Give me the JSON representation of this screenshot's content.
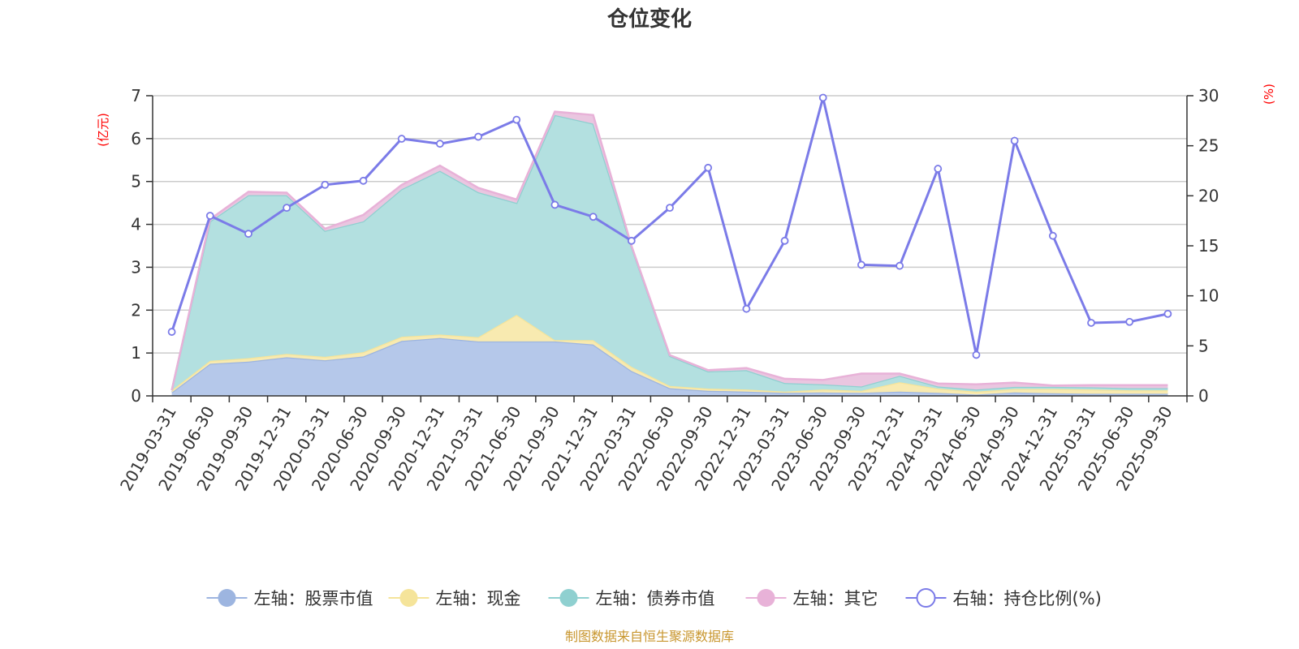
{
  "chart_data": {
    "type": "area",
    "title": "仓位变化",
    "left_axis_unit": "(亿元)",
    "right_axis_unit": "(%)",
    "left_ylim": [
      0,
      7
    ],
    "left_ticks": [
      "0",
      "1",
      "2",
      "3",
      "4",
      "5",
      "6",
      "7"
    ],
    "right_ylim": [
      0,
      30
    ],
    "right_ticks": [
      "0",
      "5",
      "10",
      "15",
      "20",
      "25",
      "30"
    ],
    "categories": [
      "2019-03-31",
      "2019-06-30",
      "2019-09-30",
      "2019-12-31",
      "2020-03-31",
      "2020-06-30",
      "2020-09-30",
      "2020-12-31",
      "2021-03-31",
      "2021-06-30",
      "2021-09-30",
      "2021-12-31",
      "2022-03-31",
      "2022-06-30",
      "2022-09-30",
      "2022-12-31",
      "2023-03-31",
      "2023-06-30",
      "2023-09-30",
      "2023-12-31",
      "2024-03-31",
      "2024-06-30",
      "2024-09-30",
      "2024-12-31",
      "2025-03-31",
      "2025-06-30",
      "2025-09-30"
    ],
    "series": [
      {
        "name": "左轴：股票市值",
        "axis": "left",
        "color": "#9db5e0",
        "fill": "#b5c8ea",
        "values": [
          0.08,
          0.75,
          0.8,
          0.9,
          0.83,
          0.92,
          1.28,
          1.35,
          1.27,
          1.27,
          1.27,
          1.2,
          0.58,
          0.18,
          0.12,
          0.1,
          0.07,
          0.08,
          0.07,
          0.1,
          0.07,
          0.03,
          0.08,
          0.06,
          0.05,
          0.05,
          0.05
        ]
      },
      {
        "name": "左轴：现金",
        "axis": "left",
        "color": "#f5e49a",
        "fill": "#f8eab0",
        "values": [
          0.05,
          0.07,
          0.08,
          0.08,
          0.08,
          0.1,
          0.1,
          0.08,
          0.1,
          0.62,
          0.03,
          0.1,
          0.1,
          0.05,
          0.05,
          0.05,
          0.03,
          0.07,
          0.05,
          0.22,
          0.1,
          0.07,
          0.08,
          0.1,
          0.1,
          0.08,
          0.08
        ]
      },
      {
        "name": "左轴：债券市值",
        "axis": "left",
        "color": "#8fd0d0",
        "fill": "#b3e0e0",
        "values": [
          0,
          3.25,
          3.8,
          3.7,
          2.94,
          3.05,
          3.44,
          3.82,
          3.38,
          2.61,
          5.25,
          5.05,
          2.8,
          0.7,
          0.4,
          0.45,
          0.2,
          0.12,
          0.1,
          0.15,
          0.05,
          0.05,
          0.05,
          0.05,
          0.05,
          0.05,
          0.05
        ]
      },
      {
        "name": "左轴：其它",
        "axis": "left",
        "color": "#e8b2d8",
        "fill": "#eac6e0",
        "values": [
          0,
          0.05,
          0.08,
          0.06,
          0.05,
          0.15,
          0.1,
          0.12,
          0.1,
          0.08,
          0.08,
          0.2,
          0.02,
          0.02,
          0.03,
          0.05,
          0.1,
          0.1,
          0.3,
          0.05,
          0.07,
          0.12,
          0.1,
          0.03,
          0.05,
          0.07,
          0.07
        ]
      },
      {
        "name": "右轴：持仓比例(%)",
        "axis": "right",
        "color": "#7b7be8",
        "values": [
          6.4,
          18,
          16.2,
          18.8,
          21.1,
          21.5,
          25.7,
          25.2,
          25.9,
          27.6,
          19.1,
          17.9,
          15.5,
          18.8,
          22.8,
          8.7,
          15.5,
          29.8,
          13.1,
          13,
          22.7,
          4.1,
          25.5,
          16,
          7.3,
          7.4,
          8.2
        ]
      }
    ],
    "source": "制图数据来自恒生聚源数据库"
  }
}
